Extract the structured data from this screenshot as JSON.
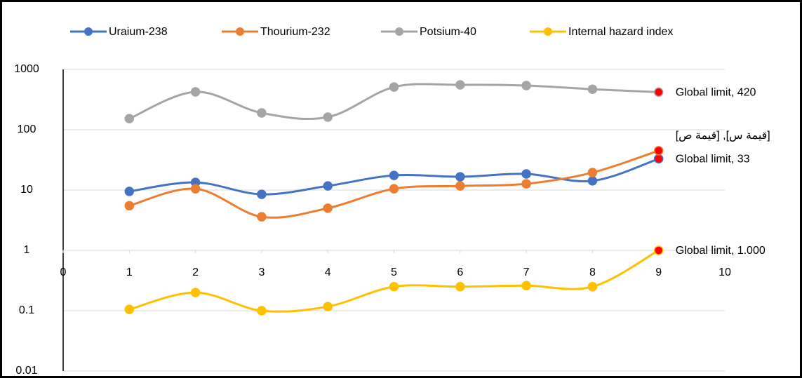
{
  "chart_data": {
    "type": "line",
    "y_scale": "log",
    "grid": true,
    "legend": "top",
    "x": [
      1,
      2,
      3,
      4,
      5,
      6,
      7,
      8,
      9
    ],
    "xlim": [
      0,
      10
    ],
    "xticks": [
      0,
      1,
      2,
      3,
      4,
      5,
      6,
      7,
      8,
      9,
      10
    ],
    "ylim": [
      0.01,
      1000
    ],
    "yticks": [
      0.01,
      0.1,
      1,
      10,
      100,
      1000
    ],
    "last_point_color": "#ff0000",
    "series": [
      {
        "name": "Uraium-238",
        "color": "#4472c4",
        "values": [
          9.5,
          13.4,
          8.5,
          11.7,
          17.5,
          16.6,
          18.5,
          14.2,
          33
        ],
        "end_label": "Global limit, 33"
      },
      {
        "name": "Thourium-232",
        "color": "#ed7d31",
        "values": [
          5.5,
          10.5,
          3.6,
          5.0,
          10.5,
          11.7,
          12.7,
          19.5,
          45
        ],
        "end_label": "[قيمة ص] ,[قيمة س]"
      },
      {
        "name": "Potsium-40",
        "color": "#a5a5a5",
        "values": [
          153,
          425,
          190,
          162,
          510,
          555,
          540,
          470,
          420
        ],
        "end_label": "Global limit, 420"
      },
      {
        "name": "Internal hazard index",
        "color": "#ffc000",
        "values": [
          0.105,
          0.2,
          0.1,
          0.117,
          0.25,
          0.25,
          0.26,
          0.25,
          1
        ],
        "end_label": "Global limit, 1.000"
      }
    ]
  }
}
